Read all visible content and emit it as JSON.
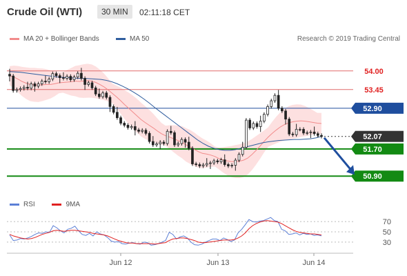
{
  "header": {
    "title": "Crude Oil (WTI)",
    "timeframe": "30 MIN",
    "time": "02:11:18 CET"
  },
  "legend": {
    "ma20_label": "MA 20 + Bollinger Bands",
    "ma50_label": "MA 50",
    "ma20_color": "#f28b8b",
    "ma50_color": "#2f5d9e",
    "credit": "Research © 2019 Trading Central"
  },
  "rsi_legend": {
    "rsi_label": "RSI",
    "ma_label": "9MA",
    "rsi_color": "#5b7fd6",
    "ma_color": "#e02020"
  },
  "chart_data": [
    {
      "type": "line",
      "title": "Crude Oil (WTI) 30 MIN",
      "ylim": [
        50.6,
        54.3
      ],
      "x_ticks": [
        "Jun 12",
        "Jun 13",
        "Jun 14"
      ],
      "price_levels": [
        {
          "label": "54.00",
          "value": 54.0,
          "kind": "resistance",
          "color": "#e06a6a"
        },
        {
          "label": "53.45",
          "value": 53.45,
          "kind": "resistance",
          "color": "#e06a6a"
        },
        {
          "label": "52.90",
          "value": 52.9,
          "kind": "pivot",
          "color": "#1f4e9e"
        },
        {
          "label": "52.07",
          "value": 52.07,
          "kind": "last",
          "color": "#333333"
        },
        {
          "label": "51.70",
          "value": 51.7,
          "kind": "support",
          "color": "#138a13"
        },
        {
          "label": "50.90",
          "value": 50.9,
          "kind": "support",
          "color": "#138a13"
        }
      ],
      "series": [
        {
          "name": "Price",
          "values": [
            53.85,
            53.42,
            53.45,
            53.48,
            53.52,
            53.49,
            53.62,
            53.55,
            53.62,
            53.7,
            53.68,
            53.76,
            53.92,
            53.86,
            53.8,
            53.78,
            53.84,
            53.74,
            53.82,
            53.93,
            53.78,
            53.6,
            53.65,
            53.5,
            53.32,
            53.24,
            53.35,
            53.22,
            52.95,
            52.78,
            52.62,
            52.46,
            52.4,
            52.33,
            52.36,
            52.26,
            52.22,
            52.25,
            52.16,
            51.92,
            51.82,
            51.85,
            51.9,
            51.86,
            52.22,
            52.18,
            51.82,
            51.86,
            51.98,
            51.9,
            51.72,
            51.26,
            51.24,
            51.2,
            51.23,
            51.27,
            51.29,
            51.35,
            51.32,
            51.38,
            51.24,
            51.2,
            51.22,
            51.37,
            51.54,
            51.75,
            52.55,
            52.32,
            52.45,
            52.36,
            52.52,
            52.72,
            52.95,
            53.12,
            53.28,
            52.9,
            52.82,
            52.58,
            52.14,
            52.12,
            52.28,
            52.28,
            52.17,
            52.18,
            52.2,
            52.15,
            52.1,
            52.07
          ]
        },
        {
          "name": "MA 20",
          "values": [
            53.86,
            53.82,
            53.76,
            53.69,
            53.64,
            53.6,
            53.59,
            53.58,
            53.59,
            53.6,
            53.6,
            53.62,
            53.65,
            53.66,
            53.67,
            53.68,
            53.7,
            53.69,
            53.7,
            53.71,
            53.7,
            53.66,
            53.6,
            53.53,
            53.44,
            53.34,
            53.24,
            53.13,
            53.01,
            52.9,
            52.79,
            52.68,
            52.57,
            52.48,
            52.4,
            52.32,
            52.23,
            52.15,
            52.09,
            52.05,
            52.0,
            51.95,
            51.9,
            51.82,
            51.76,
            51.69,
            51.62,
            51.57,
            51.55,
            51.52,
            51.48,
            51.42,
            51.38,
            51.35,
            51.33,
            51.33,
            51.34,
            51.37,
            51.43,
            51.53,
            51.65,
            51.78,
            51.92,
            52.05,
            52.16,
            52.26,
            52.35,
            52.42,
            52.47,
            52.5,
            52.52,
            52.53,
            52.52,
            52.5,
            52.48,
            52.46,
            52.45
          ]
        },
        {
          "name": "MA 50",
          "values": [
            53.98,
            53.97,
            53.96,
            53.94,
            53.92,
            53.9,
            53.88,
            53.86,
            53.84,
            53.82,
            53.81,
            53.8,
            53.79,
            53.78,
            53.78,
            53.77,
            53.76,
            53.75,
            53.72,
            53.68,
            53.62,
            53.55,
            53.47,
            53.38,
            53.28,
            53.17,
            53.05,
            52.92,
            52.8,
            52.68,
            52.56,
            52.44,
            52.32,
            52.2,
            52.08,
            51.96,
            51.86,
            51.78,
            51.72,
            51.68,
            51.66,
            51.66,
            51.68,
            51.72,
            51.76,
            51.8,
            51.84,
            51.88,
            51.91,
            51.93,
            51.95,
            51.96,
            51.97,
            51.98,
            51.98,
            51.99,
            52.0,
            52.03,
            52.07
          ]
        }
      ]
    },
    {
      "type": "line",
      "title": "RSI",
      "ylim": [
        15,
        85
      ],
      "y_ticks": [
        30,
        50,
        70
      ],
      "x_ticks": [
        "Jun 12",
        "Jun 13",
        "Jun 14"
      ],
      "series": [
        {
          "name": "RSI",
          "values": [
            44,
            33,
            34,
            37,
            36,
            38,
            41,
            45,
            48,
            47,
            50,
            49,
            62,
            58,
            52,
            48,
            55,
            57,
            61,
            52,
            45,
            43,
            47,
            42,
            50,
            46,
            44,
            39,
            32,
            30,
            31,
            27,
            26,
            28,
            29,
            27,
            26,
            30,
            29,
            24,
            25,
            27,
            30,
            33,
            49,
            45,
            36,
            40,
            42,
            38,
            30,
            25,
            24,
            26,
            30,
            33,
            36,
            36,
            33,
            38,
            35,
            31,
            34,
            48,
            55,
            64,
            74,
            70,
            69,
            71,
            72,
            75,
            78,
            72,
            70,
            55,
            52,
            45,
            46,
            48,
            44,
            47,
            45,
            46,
            43,
            44,
            42
          ]
        },
        {
          "name": "9MA",
          "values": [
            45,
            42,
            40,
            38,
            37,
            36,
            37,
            39,
            42,
            45,
            47,
            49,
            52,
            53,
            52,
            51,
            52,
            53,
            53,
            52,
            51,
            50,
            49,
            47,
            46,
            45,
            44,
            42,
            39,
            36,
            33,
            31,
            29,
            28,
            28,
            27,
            27,
            27,
            27,
            27,
            26,
            27,
            28,
            29,
            33,
            36,
            37,
            38,
            38,
            37,
            35,
            33,
            30,
            29,
            29,
            30,
            31,
            32,
            33,
            34,
            34,
            34,
            35,
            38,
            42,
            48,
            56,
            62,
            66,
            69,
            71,
            72,
            71,
            70,
            69,
            66,
            62,
            58,
            54,
            51,
            49,
            48,
            47,
            46,
            46,
            45,
            44
          ]
        }
      ]
    }
  ]
}
